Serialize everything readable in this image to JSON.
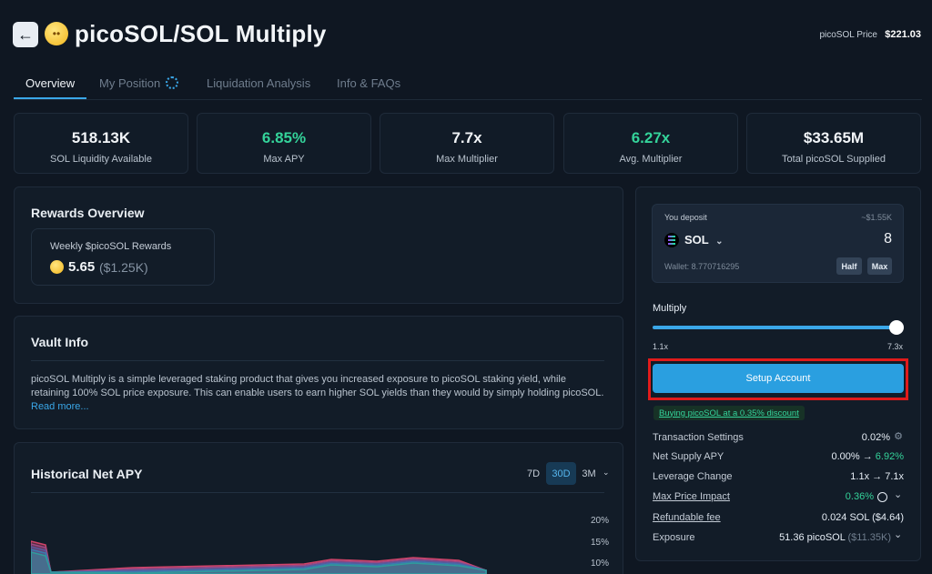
{
  "header": {
    "back_icon": "arrow-left-icon",
    "title_emoji_icon": "rolling-eyes-emoji-icon",
    "title": "picoSOL/SOL Multiply",
    "price_label": "picoSOL Price",
    "price_value": "$221.03"
  },
  "tabs": [
    {
      "label": "Overview",
      "active": true
    },
    {
      "label": "My Position",
      "active": false,
      "loading": true
    },
    {
      "label": "Liquidation Analysis",
      "active": false
    },
    {
      "label": "Info & FAQs",
      "active": false
    }
  ],
  "stats": [
    {
      "value": "518.13K",
      "label": "SOL Liquidity Available"
    },
    {
      "value": "6.85%",
      "label": "Max APY"
    },
    {
      "value": "7.7x",
      "label": "Max Multiplier"
    },
    {
      "value": "6.27x",
      "label": "Avg. Multiplier"
    },
    {
      "value": "$33.65M",
      "label": "Total picoSOL Supplied"
    }
  ],
  "rewards": {
    "title": "Rewards Overview",
    "label": "Weekly $picoSOL Rewards",
    "value": "5.65",
    "usd": "($1.25K)"
  },
  "vault": {
    "title": "Vault Info",
    "description": "picoSOL Multiply is a simple leveraged staking product that gives you increased exposure to picoSOL staking yield, while retaining 100% SOL price exposure. This can enable users to earn higher SOL yields than they would by simply holding picoSOL.",
    "read_more": "Read more..."
  },
  "history": {
    "title": "Historical Net APY",
    "ranges": [
      "7D",
      "30D",
      "3M"
    ],
    "selected_range": "30D",
    "y_ticks": [
      "20%",
      "15%",
      "10%"
    ]
  },
  "chart_data": {
    "type": "area",
    "title": "Historical Net APY",
    "y_ticks": [
      "20%",
      "15%",
      "10%"
    ],
    "series_colors": [
      "#d2446a",
      "#9a4a86",
      "#5a5a9e",
      "#3a7bb0",
      "#2f9c9c"
    ]
  },
  "deposit": {
    "label": "You deposit",
    "usd_estimate": "~$1.55K",
    "token": "SOL",
    "amount": "8",
    "wallet": "Wallet: 8.770716295",
    "half_label": "Half",
    "max_label": "Max"
  },
  "multiply": {
    "label": "Multiply",
    "min": "1.1x",
    "max": "7.3x",
    "level": 1.0
  },
  "setup_button": "Setup Account",
  "discount_text": "Buying picoSOL at a 0.35% discount",
  "details": {
    "transaction_settings": {
      "label": "Transaction Settings",
      "value": "0.02%"
    },
    "net_supply_apy": {
      "label": "Net Supply APY",
      "from": "0.00%",
      "to": "6.92%"
    },
    "leverage_change": {
      "label": "Leverage Change",
      "from": "1.1x",
      "to": "7.1x"
    },
    "max_price_impact": {
      "label": "Max Price Impact",
      "value": "0.36%"
    },
    "refundable_fee": {
      "label": "Refundable fee",
      "value": "0.024 SOL ($4.64)"
    },
    "exposure": {
      "label": "Exposure",
      "value": "51.36 picoSOL",
      "usd": "($11.35K)"
    }
  },
  "arrow": "→",
  "colors": {
    "background": "#0f1722",
    "accent": "#3aa7e8",
    "positive": "#34d39a",
    "highlight_box": "#e01b1b"
  }
}
